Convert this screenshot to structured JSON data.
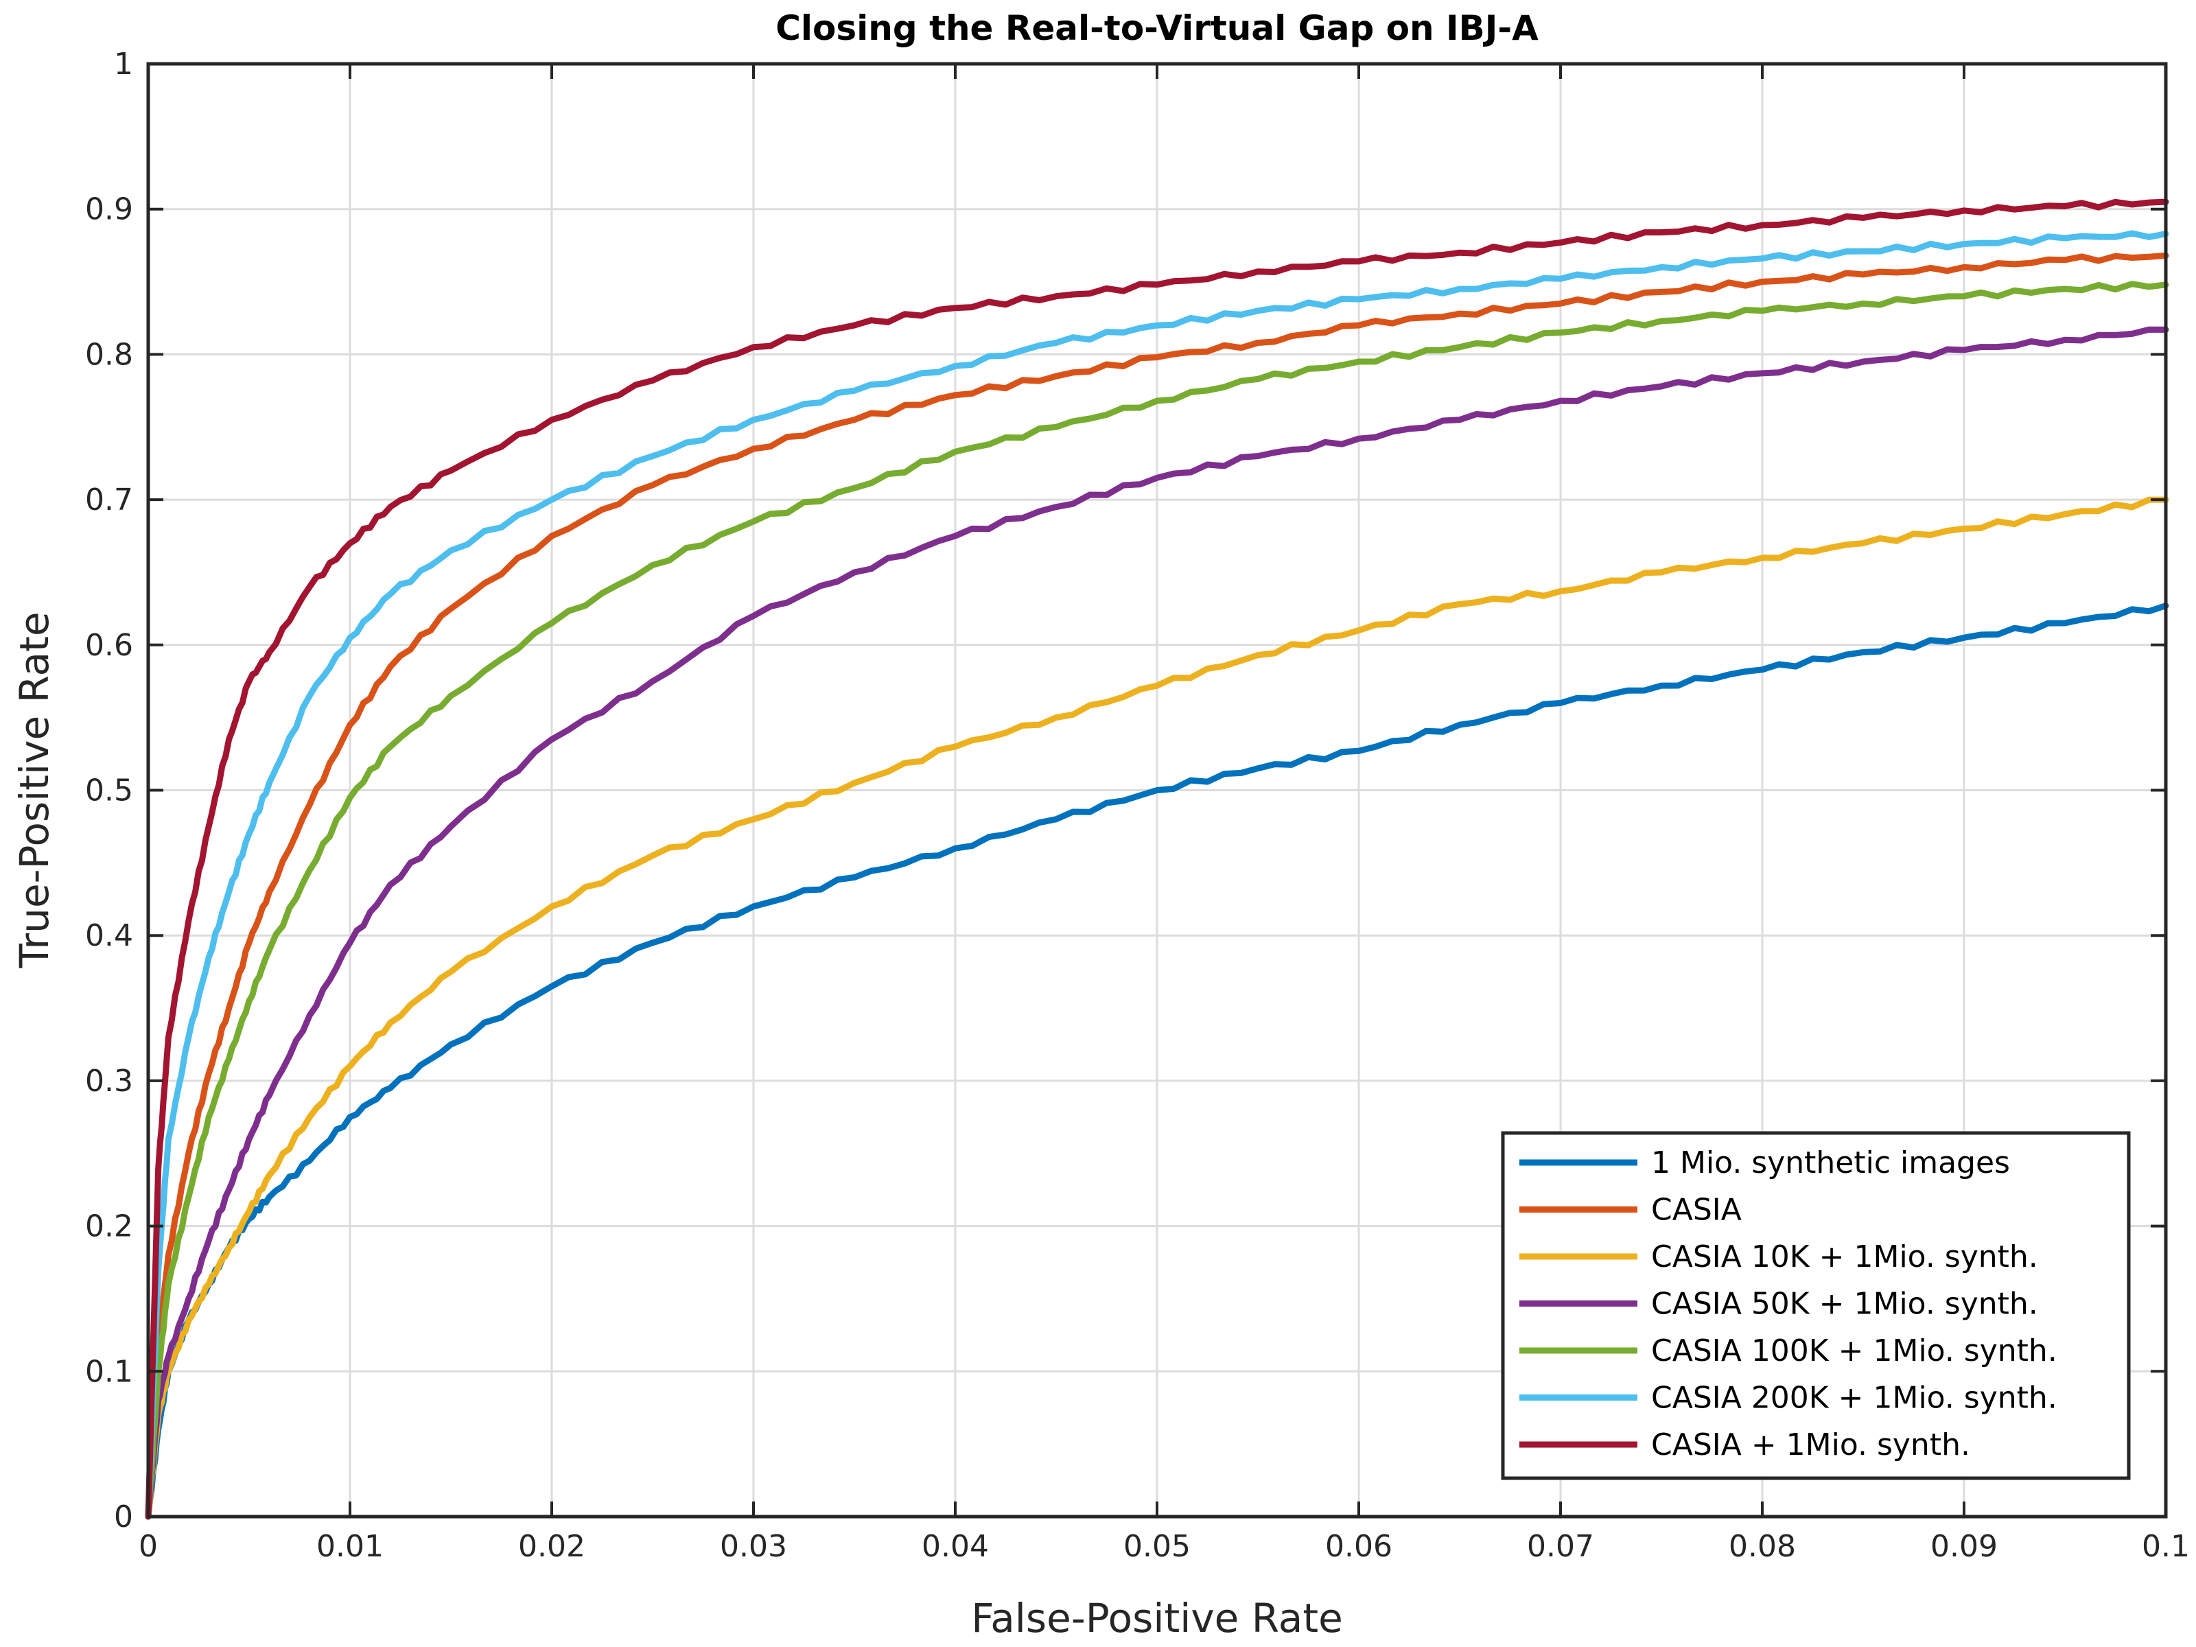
{
  "chart_data": {
    "type": "line",
    "title": "Closing the Real-to-Virtual Gap on IBJ-A",
    "xlabel": "False-Positive Rate",
    "ylabel": "True-Positive Rate",
    "xlim": [
      0,
      0.1
    ],
    "ylim": [
      0,
      1
    ],
    "x_ticks": [
      0,
      0.01,
      0.02,
      0.03,
      0.04,
      0.05,
      0.06,
      0.07,
      0.08,
      0.09,
      0.1
    ],
    "x_tick_labels": [
      "0",
      "0.01",
      "0.02",
      "0.03",
      "0.04",
      "0.05",
      "0.06",
      "0.07",
      "0.08",
      "0.09",
      "0.1"
    ],
    "y_ticks": [
      0,
      0.1,
      0.2,
      0.3,
      0.4,
      0.5,
      0.6,
      0.7,
      0.8,
      0.9,
      1
    ],
    "y_tick_labels": [
      "0",
      "0.1",
      "0.2",
      "0.3",
      "0.4",
      "0.5",
      "0.6",
      "0.7",
      "0.8",
      "0.9",
      "1"
    ],
    "grid": true,
    "legend_position": "bottom-right",
    "x": [
      0,
      0.0005,
      0.001,
      0.002,
      0.003,
      0.004,
      0.005,
      0.006,
      0.008,
      0.01,
      0.012,
      0.015,
      0.02,
      0.025,
      0.03,
      0.035,
      0.04,
      0.045,
      0.05,
      0.055,
      0.06,
      0.065,
      0.07,
      0.075,
      0.08,
      0.085,
      0.09,
      0.095,
      0.1
    ],
    "series": [
      {
        "name": "1 Mio. synthetic images",
        "color": "#0072bd",
        "values": [
          0,
          0.06,
          0.1,
          0.135,
          0.16,
          0.185,
          0.205,
          0.22,
          0.245,
          0.275,
          0.295,
          0.325,
          0.365,
          0.395,
          0.42,
          0.44,
          0.46,
          0.48,
          0.5,
          0.515,
          0.527,
          0.545,
          0.56,
          0.572,
          0.583,
          0.595,
          0.605,
          0.615,
          0.627
        ]
      },
      {
        "name": "CASIA",
        "color": "#d95319",
        "values": [
          0,
          0.12,
          0.18,
          0.25,
          0.305,
          0.35,
          0.395,
          0.43,
          0.49,
          0.545,
          0.585,
          0.625,
          0.675,
          0.71,
          0.735,
          0.755,
          0.772,
          0.785,
          0.798,
          0.808,
          0.82,
          0.828,
          0.835,
          0.843,
          0.85,
          0.855,
          0.86,
          0.865,
          0.868
        ]
      },
      {
        "name": "CASIA 10K + 1Mio. synth.",
        "color": "#edb120",
        "values": [
          0,
          0.07,
          0.1,
          0.135,
          0.16,
          0.185,
          0.21,
          0.235,
          0.275,
          0.31,
          0.34,
          0.375,
          0.42,
          0.455,
          0.48,
          0.505,
          0.53,
          0.55,
          0.572,
          0.593,
          0.61,
          0.628,
          0.637,
          0.65,
          0.66,
          0.67,
          0.68,
          0.69,
          0.7
        ]
      },
      {
        "name": "CASIA 50K + 1Mio. synth.",
        "color": "#7e2f8e",
        "values": [
          0,
          0.08,
          0.11,
          0.15,
          0.19,
          0.225,
          0.26,
          0.29,
          0.345,
          0.395,
          0.435,
          0.475,
          0.535,
          0.575,
          0.62,
          0.65,
          0.675,
          0.695,
          0.715,
          0.73,
          0.742,
          0.755,
          0.768,
          0.778,
          0.787,
          0.795,
          0.803,
          0.81,
          0.817
        ]
      },
      {
        "name": "CASIA 100K + 1Mio. synth.",
        "color": "#77ac30",
        "values": [
          0,
          0.1,
          0.16,
          0.22,
          0.275,
          0.315,
          0.355,
          0.39,
          0.445,
          0.495,
          0.53,
          0.565,
          0.615,
          0.655,
          0.685,
          0.708,
          0.733,
          0.75,
          0.768,
          0.783,
          0.795,
          0.805,
          0.815,
          0.823,
          0.83,
          0.835,
          0.84,
          0.845,
          0.848
        ]
      },
      {
        "name": "CASIA 200K + 1Mio. synth.",
        "color": "#4dbeee",
        "values": [
          0,
          0.17,
          0.26,
          0.33,
          0.385,
          0.43,
          0.47,
          0.505,
          0.565,
          0.605,
          0.635,
          0.665,
          0.7,
          0.73,
          0.755,
          0.775,
          0.792,
          0.808,
          0.82,
          0.83,
          0.838,
          0.845,
          0.852,
          0.86,
          0.866,
          0.871,
          0.876,
          0.88,
          0.883
        ]
      },
      {
        "name": "CASIA + 1Mio. synth.",
        "color": "#a2142f",
        "values": [
          0,
          0.24,
          0.33,
          0.41,
          0.475,
          0.535,
          0.575,
          0.595,
          0.64,
          0.67,
          0.695,
          0.72,
          0.755,
          0.782,
          0.805,
          0.82,
          0.832,
          0.84,
          0.848,
          0.857,
          0.864,
          0.87,
          0.877,
          0.884,
          0.889,
          0.894,
          0.899,
          0.902,
          0.905
        ]
      }
    ]
  }
}
